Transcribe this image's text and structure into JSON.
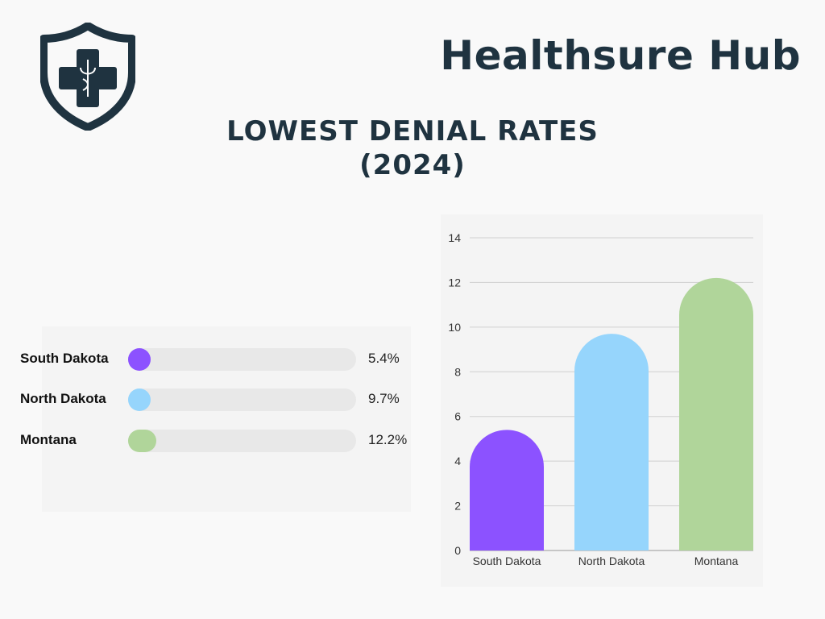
{
  "brand": "Healthsure Hub",
  "logo": {
    "icon": "shield-medical-cross-caduceus-icon",
    "color": "#1f3340"
  },
  "title_line1": "LOWEST DENIAL RATES",
  "title_line2": "(2024)",
  "progress_list": [
    {
      "label": "South Dakota",
      "value": 5.4,
      "value_label": "5.4%",
      "color": "#8c52ff"
    },
    {
      "label": "North Dakota",
      "value": 9.7,
      "value_label": "9.7%",
      "color": "#96d5fc"
    },
    {
      "label": "Montana",
      "value": 12.2,
      "value_label": "12.2%",
      "color": "#b0d59a"
    }
  ],
  "chart_data": {
    "type": "bar",
    "categories": [
      "South Dakota",
      "North Dakota",
      "Montana"
    ],
    "values": [
      5.4,
      9.7,
      12.2
    ],
    "colors": [
      "#8c52ff",
      "#96d5fc",
      "#b0d59a"
    ],
    "title": "",
    "xlabel": "",
    "ylabel": "",
    "ylim": [
      0,
      14
    ],
    "yticks": [
      0,
      2,
      4,
      6,
      8,
      10,
      12,
      14
    ],
    "grid": true
  }
}
